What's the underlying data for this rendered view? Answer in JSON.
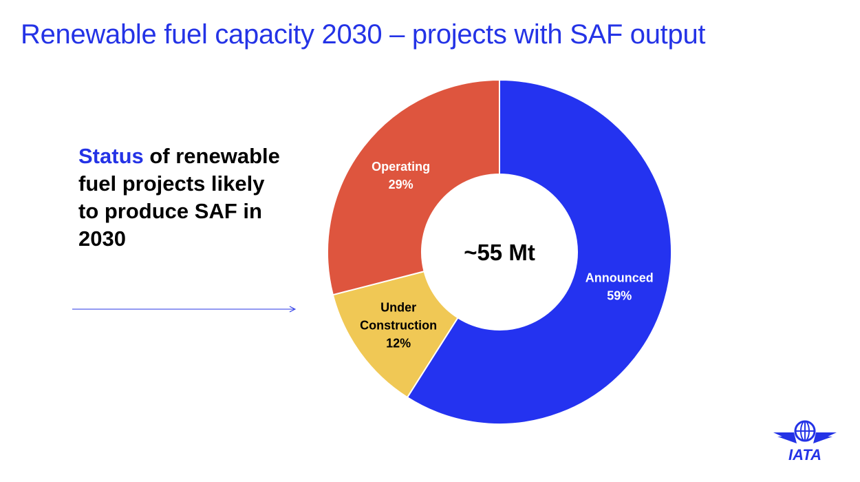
{
  "title": "Renewable fuel capacity 2030 – projects with SAF output",
  "subtitle": {
    "highlight": "Status",
    "rest": " of renewable fuel projects likely to produce SAF in 2030"
  },
  "logo_text": "IATA",
  "colors": {
    "accent": "#2433e6",
    "announced": "#2433f0",
    "under_construction": "#f0c855",
    "operating": "#de553e"
  },
  "chart_data": {
    "type": "pie",
    "donut": true,
    "center_label": "~55 Mt",
    "slices": [
      {
        "label": "Announced",
        "value": 59,
        "value_label": "59%",
        "color": "#2433f0",
        "text_color": "#ffffff"
      },
      {
        "label": "Under Construction",
        "label_lines": [
          "Under",
          "Construction"
        ],
        "value": 12,
        "value_label": "12%",
        "color": "#f0c855",
        "text_color": "#000000"
      },
      {
        "label": "Operating",
        "value": 29,
        "value_label": "29%",
        "color": "#de553e",
        "text_color": "#ffffff"
      }
    ]
  }
}
